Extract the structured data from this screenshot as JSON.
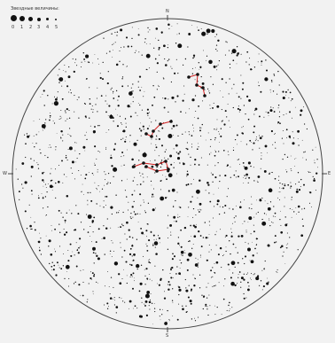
{
  "legend": {
    "title": "Звездные величины:",
    "magnitudes": [
      "0",
      "1",
      "2",
      "3",
      "4",
      "5"
    ]
  },
  "compass": {
    "north": "N",
    "south": "S",
    "east": "E",
    "west": "W"
  },
  "colors": {
    "background": "#f2f2f2",
    "horizon": "#444444",
    "star": "#111111",
    "constellation": "#d22020"
  },
  "constellations": [
    {
      "id": "northern-chain",
      "stars": [
        [
          213,
          87
        ],
        [
          223,
          84
        ],
        [
          222,
          96
        ],
        [
          229,
          99
        ],
        [
          231,
          108
        ]
      ]
    },
    {
      "id": "middle-arc",
      "stars": [
        [
          193,
          137
        ],
        [
          181,
          140
        ],
        [
          173,
          148
        ],
        [
          171,
          154
        ],
        [
          165,
          151
        ]
      ]
    },
    {
      "id": "southern-box",
      "stars": [
        [
          151,
          188
        ],
        [
          162,
          184
        ],
        [
          177,
          186
        ],
        [
          187,
          182
        ],
        [
          190,
          191
        ],
        [
          177,
          193
        ],
        [
          165,
          188
        ]
      ]
    }
  ]
}
